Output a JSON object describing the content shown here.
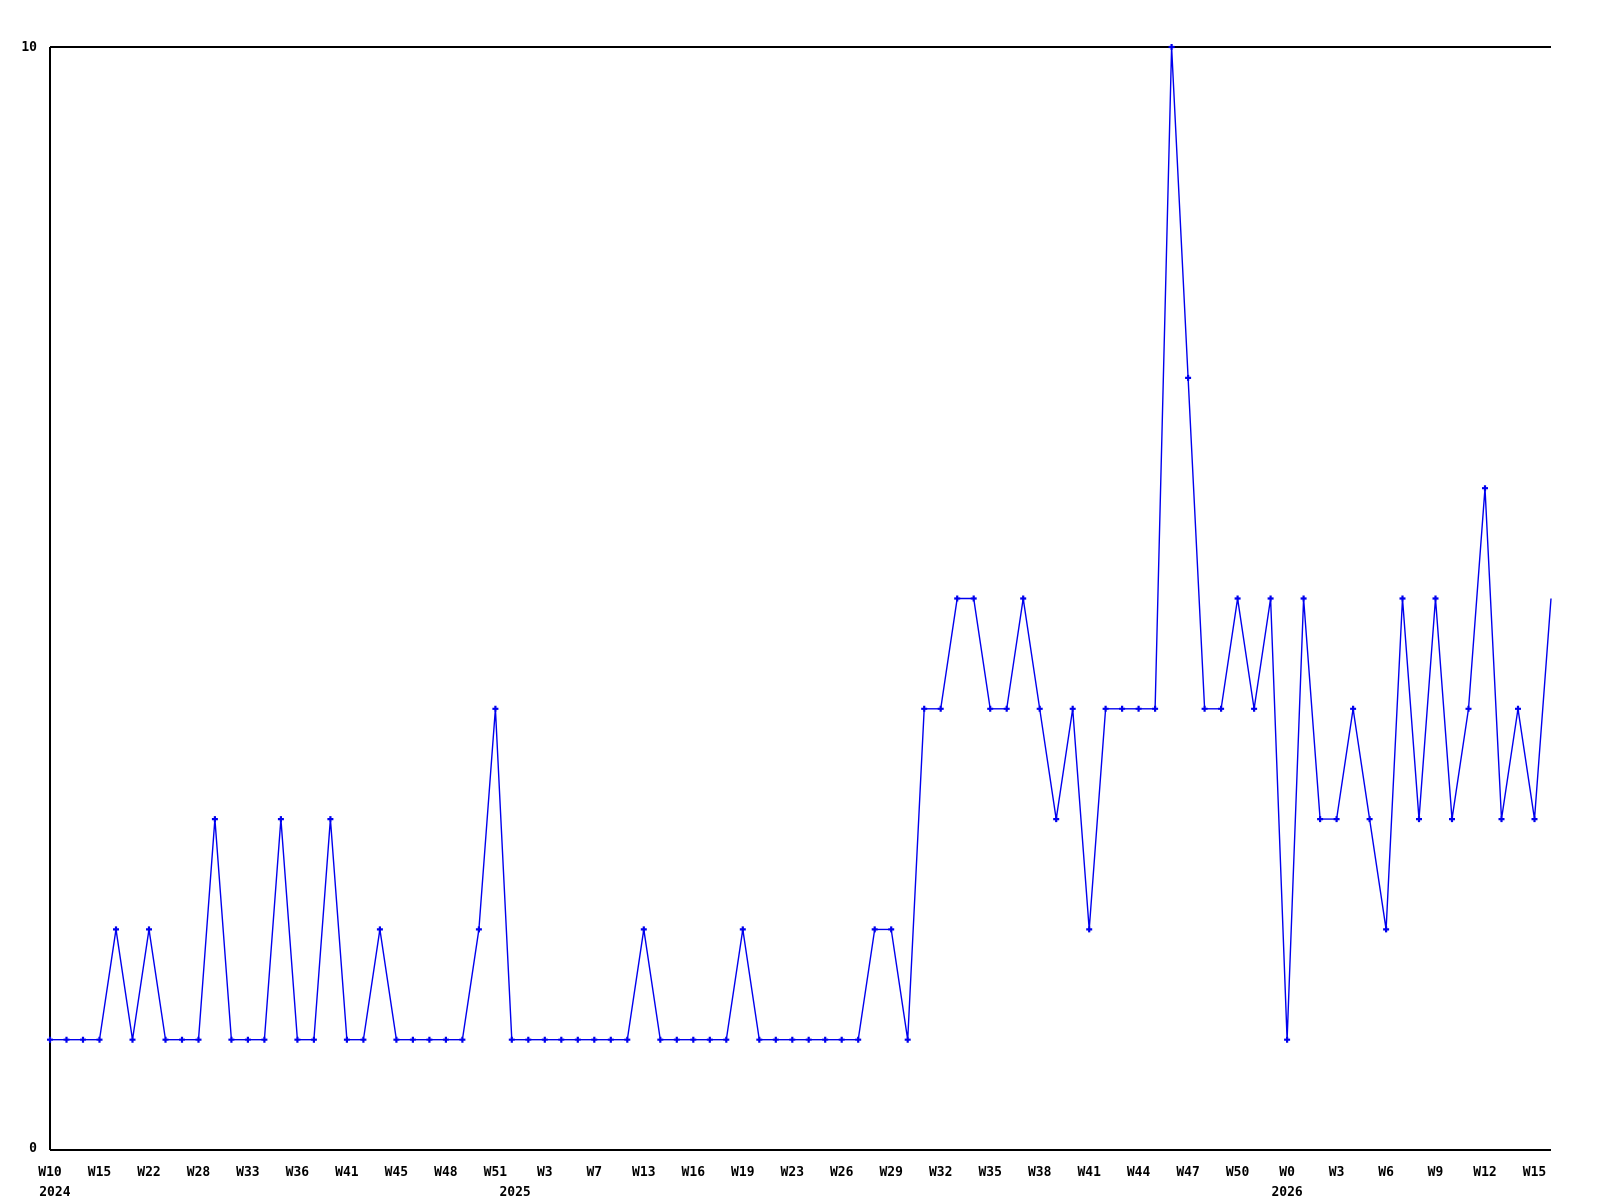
{
  "chart_data": {
    "type": "line",
    "title": "",
    "legend": "none",
    "grid": false,
    "background": "#ffffff",
    "line_color": "#0000ee",
    "axis_color": "#000000",
    "marker": "plus",
    "marker_size": 7,
    "ylim": [
      0,
      10
    ],
    "y_axis_tick_labels": {
      "top": "10",
      "bottom": "0"
    },
    "x_axis": {
      "tick_labels": [
        {
          "p": 0,
          "label": "W10"
        },
        {
          "p": 3,
          "label": "W15"
        },
        {
          "p": 6,
          "label": "W22"
        },
        {
          "p": 9,
          "label": "W28"
        },
        {
          "p": 12,
          "label": "W33"
        },
        {
          "p": 15,
          "label": "W36"
        },
        {
          "p": 18,
          "label": "W41"
        },
        {
          "p": 21,
          "label": "W45"
        },
        {
          "p": 24,
          "label": "W48"
        },
        {
          "p": 27,
          "label": "W51"
        },
        {
          "p": 30,
          "label": "W3"
        },
        {
          "p": 33,
          "label": "W7"
        },
        {
          "p": 36,
          "label": "W13"
        },
        {
          "p": 39,
          "label": "W16"
        },
        {
          "p": 42,
          "label": "W19"
        },
        {
          "p": 45,
          "label": "W23"
        },
        {
          "p": 48,
          "label": "W26"
        },
        {
          "p": 51,
          "label": "W29"
        },
        {
          "p": 54,
          "label": "W32"
        },
        {
          "p": 57,
          "label": "W35"
        },
        {
          "p": 60,
          "label": "W38"
        },
        {
          "p": 63,
          "label": "W41"
        },
        {
          "p": 66,
          "label": "W44"
        },
        {
          "p": 69,
          "label": "W47"
        },
        {
          "p": 72,
          "label": "W50"
        },
        {
          "p": 75,
          "label": "W0"
        },
        {
          "p": 78,
          "label": "W3"
        },
        {
          "p": 81,
          "label": "W6"
        },
        {
          "p": 84,
          "label": "W9"
        },
        {
          "p": 87,
          "label": "W12"
        },
        {
          "p": 90,
          "label": "W15"
        }
      ],
      "year_labels": [
        {
          "p": 0.3,
          "label": "2024"
        },
        {
          "p": 28.2,
          "label": "2025"
        },
        {
          "p": 75,
          "label": "2026"
        }
      ]
    },
    "values": [
      1,
      1,
      1,
      1,
      2,
      1,
      2,
      1,
      1,
      1,
      3,
      1,
      1,
      1,
      3,
      1,
      1,
      3,
      1,
      1,
      2,
      1,
      1,
      1,
      1,
      1,
      2,
      4,
      1,
      1,
      1,
      1,
      1,
      1,
      1,
      1,
      2,
      1,
      1,
      1,
      1,
      1,
      2,
      1,
      1,
      1,
      1,
      1,
      1,
      1,
      2,
      2,
      1,
      4,
      4,
      5,
      5,
      4,
      4,
      5,
      4,
      3,
      4,
      2,
      4,
      4,
      4,
      4,
      10,
      7,
      4,
      4,
      5,
      4,
      5,
      1,
      5,
      3,
      3,
      4,
      3,
      2,
      5,
      3,
      5,
      3,
      4,
      6,
      3,
      4,
      3,
      5
    ],
    "clip_last_marker": true
  }
}
